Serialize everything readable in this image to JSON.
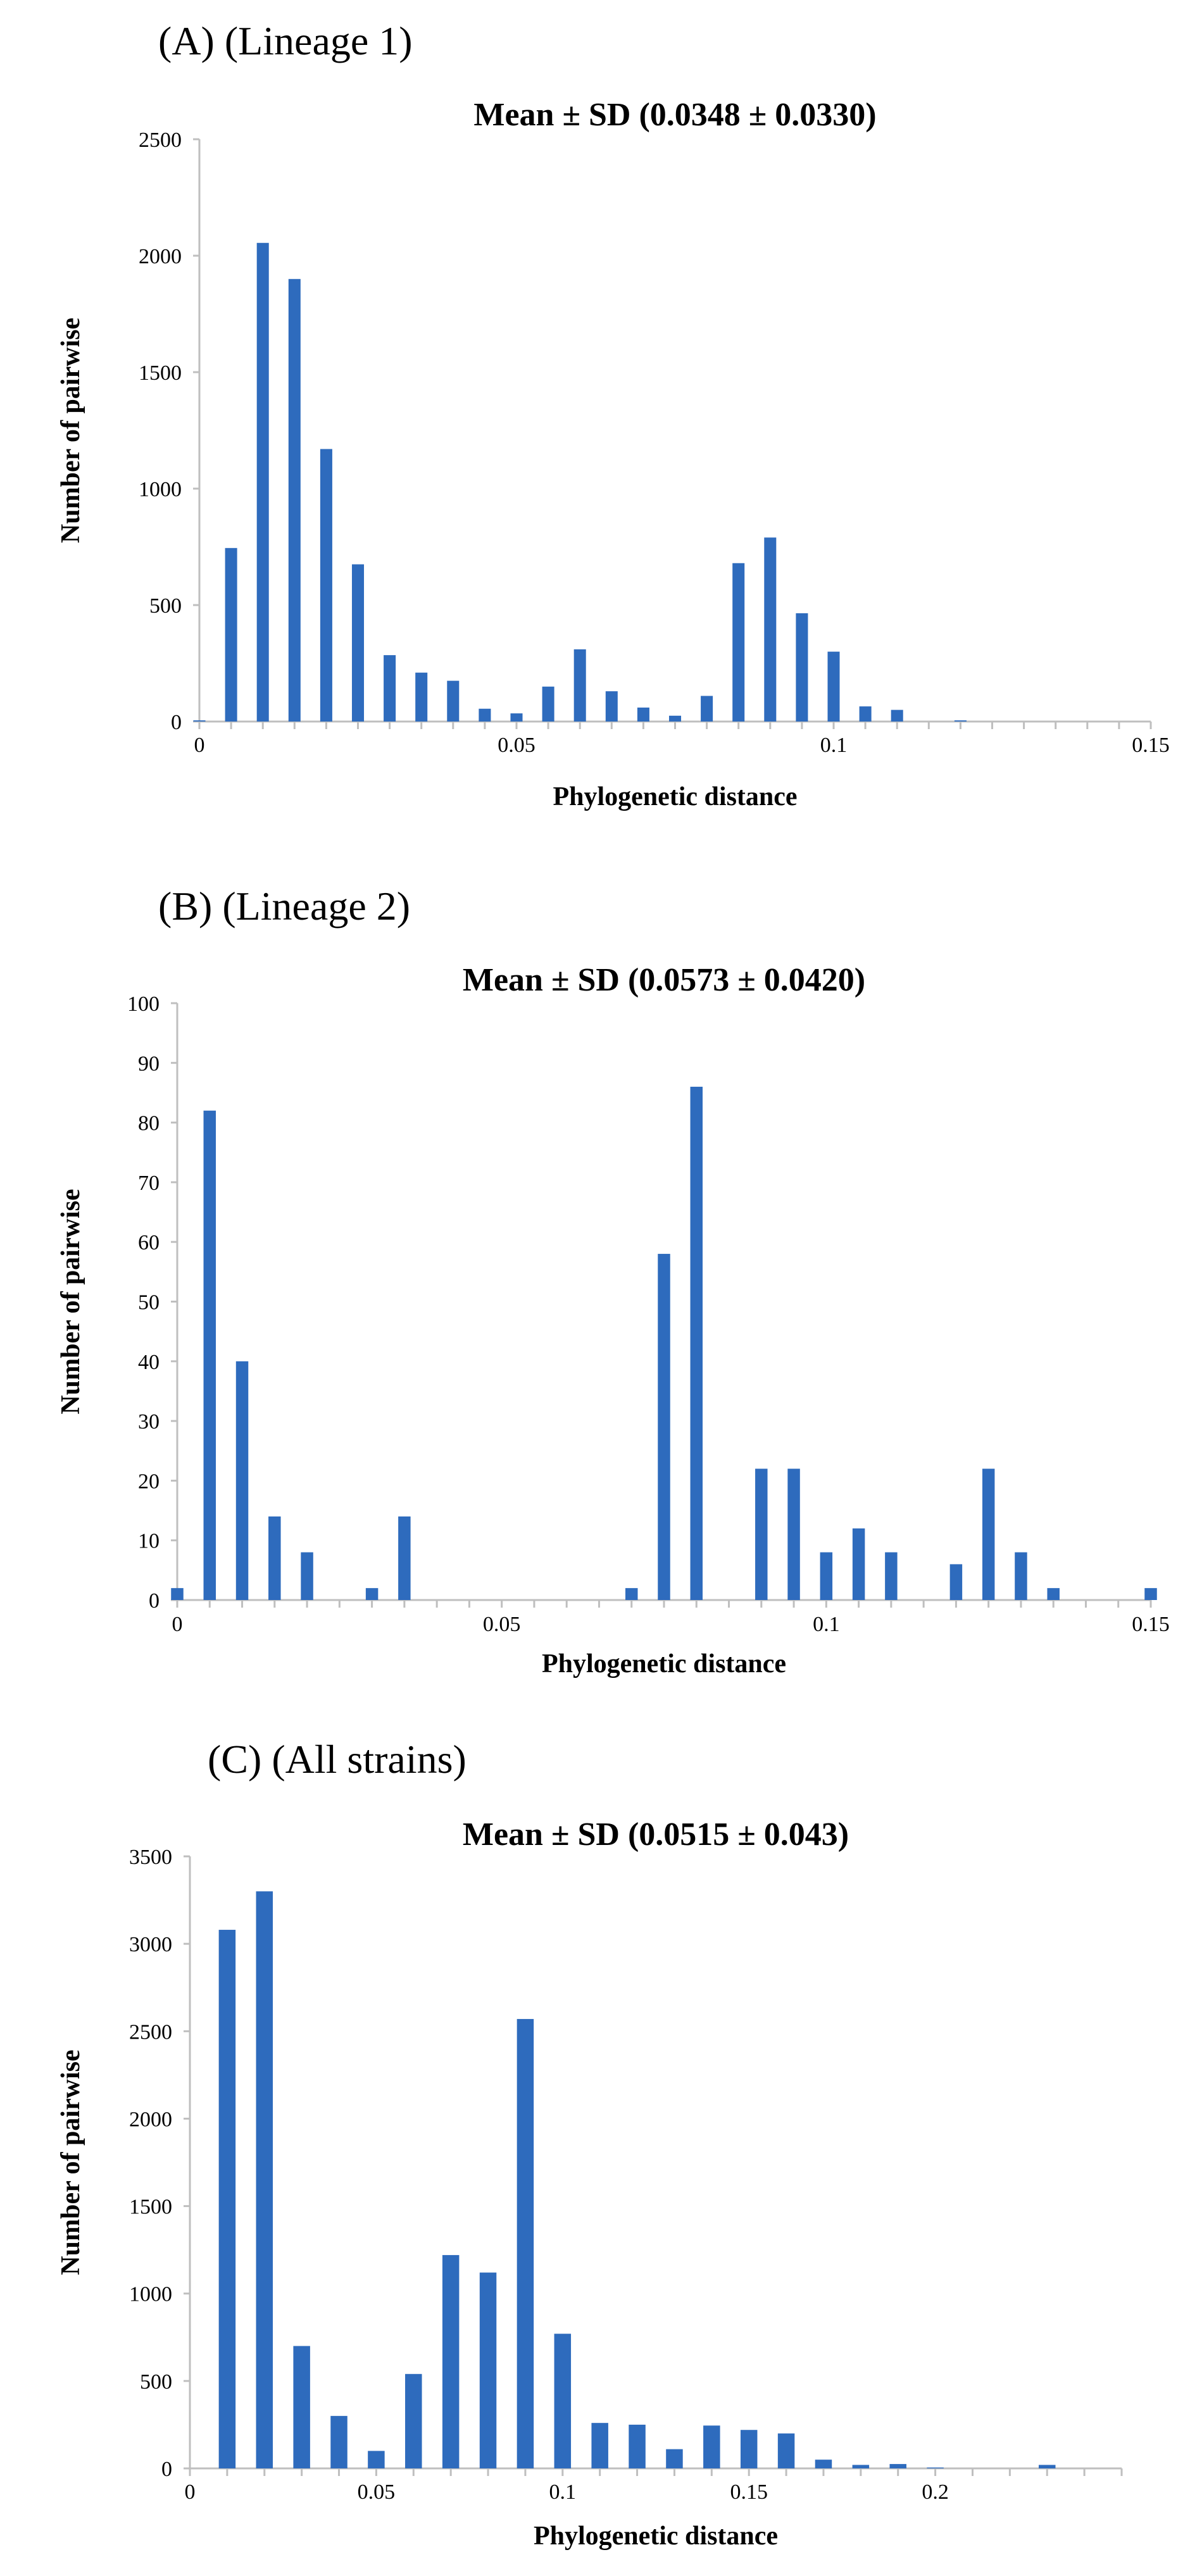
{
  "colors": {
    "bar": "#2e6bbd",
    "axis": "#bfbfbf",
    "text": "#000000"
  },
  "chart_data": [
    {
      "type": "bar",
      "panel_label": "(A) (Lineage 1)",
      "title": "Mean ± SD (0.0348 ± 0.0330)",
      "xlabel": "Phylogenetic distance",
      "ylabel": "Number of pairwise",
      "ylim": [
        0,
        2500
      ],
      "y_ticks": [
        0,
        500,
        1000,
        1500,
        2000,
        2500
      ],
      "xlim": [
        0,
        0.15
      ],
      "x_ticks": [
        0,
        0.05,
        0.1,
        0.15
      ],
      "x_tick_labels": [
        "0",
        "0.05",
        "0.1",
        "0.15"
      ],
      "bin_width": 0.005,
      "x": [
        0,
        0.005,
        0.01,
        0.015,
        0.02,
        0.025,
        0.03,
        0.035,
        0.04,
        0.045,
        0.05,
        0.055,
        0.06,
        0.065,
        0.07,
        0.075,
        0.08,
        0.085,
        0.09,
        0.095,
        0.1,
        0.105,
        0.11,
        0.115,
        0.12
      ],
      "values": [
        5,
        745,
        2055,
        1900,
        1170,
        675,
        285,
        210,
        175,
        55,
        35,
        150,
        310,
        130,
        60,
        25,
        110,
        680,
        790,
        465,
        300,
        65,
        50,
        0,
        5
      ]
    },
    {
      "type": "bar",
      "panel_label": "(B) (Lineage 2)",
      "title": "Mean ± SD (0.0573 ± 0.0420)",
      "xlabel": "Phylogenetic distance",
      "ylabel": "Number of pairwise",
      "ylim": [
        0,
        100
      ],
      "y_ticks": [
        0,
        10,
        20,
        30,
        40,
        50,
        60,
        70,
        80,
        90,
        100
      ],
      "xlim": [
        0,
        0.15
      ],
      "x_ticks": [
        0,
        0.05,
        0.1,
        0.15
      ],
      "x_tick_labels": [
        "0",
        "0.05",
        "0.1",
        "0.15"
      ],
      "bin_width": 0.005,
      "x": [
        0,
        0.005,
        0.01,
        0.015,
        0.02,
        0.03,
        0.035,
        0.07,
        0.075,
        0.08,
        0.09,
        0.095,
        0.1,
        0.105,
        0.11,
        0.12,
        0.125,
        0.13,
        0.135,
        0.15
      ],
      "values": [
        2,
        82,
        40,
        14,
        8,
        2,
        14,
        2,
        58,
        86,
        22,
        22,
        8,
        12,
        8,
        6,
        22,
        8,
        2,
        2
      ]
    },
    {
      "type": "bar",
      "panel_label": "(C) (All strains)",
      "title": "Mean ± SD (0.0515 ± 0.043)",
      "xlabel": "Phylogenetic distance",
      "ylabel": "Number of pairwise",
      "ylim": [
        0,
        3500
      ],
      "y_ticks": [
        0,
        500,
        1000,
        1500,
        2000,
        2500,
        3000,
        3500
      ],
      "xlim": [
        0,
        0.25
      ],
      "x_ticks": [
        0,
        0.05,
        0.1,
        0.15,
        0.2
      ],
      "x_tick_labels": [
        "0",
        "0.05",
        "0.1",
        "0.15",
        "0.2"
      ],
      "bin_width": 0.01,
      "x": [
        0.01,
        0.02,
        0.03,
        0.04,
        0.05,
        0.06,
        0.07,
        0.08,
        0.09,
        0.1,
        0.11,
        0.12,
        0.13,
        0.14,
        0.15,
        0.16,
        0.17,
        0.18,
        0.19,
        0.2,
        0.23
      ],
      "values": [
        3080,
        3300,
        700,
        300,
        100,
        540,
        1220,
        1120,
        2570,
        770,
        260,
        250,
        110,
        245,
        220,
        200,
        50,
        20,
        25,
        5,
        20
      ]
    }
  ]
}
